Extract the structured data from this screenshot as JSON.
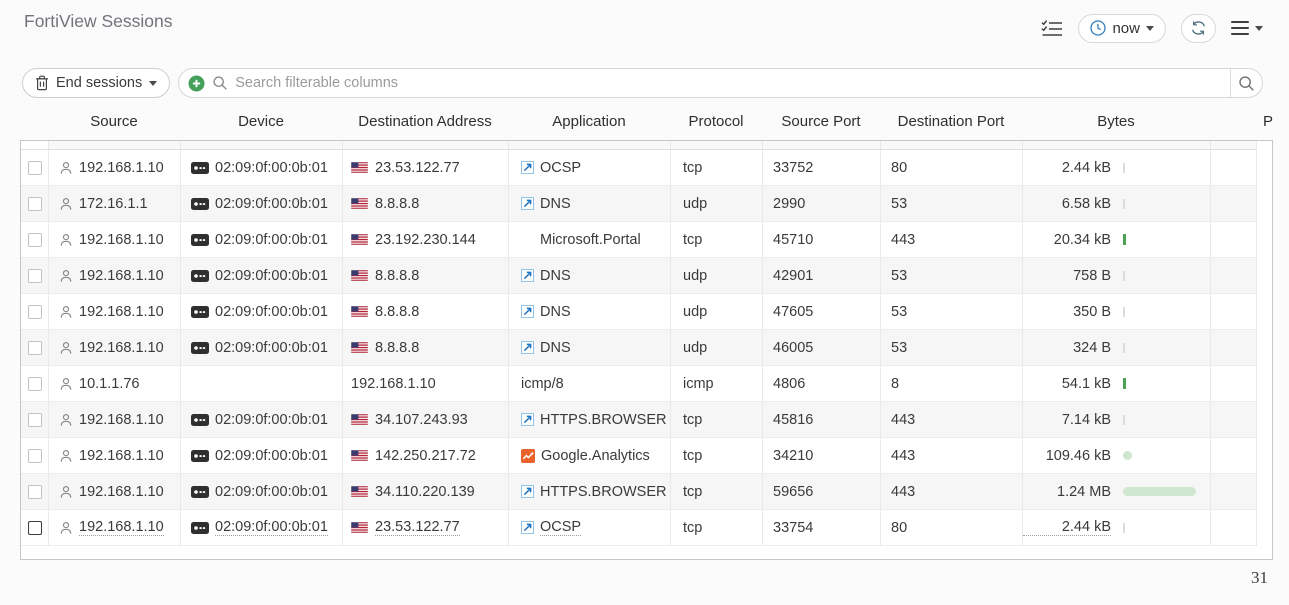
{
  "page": {
    "title": "FortiView Sessions",
    "footer_count": "31"
  },
  "topbar": {
    "time_button_label": "now",
    "icons": [
      "checklist-icon",
      "clock-icon",
      "refresh-icon",
      "hamburger-menu-icon"
    ]
  },
  "toolbar": {
    "end_sessions_label": "End sessions",
    "search_placeholder": "Search filterable columns",
    "icons": [
      "trash-icon",
      "add-filter-plus-icon",
      "search-icon"
    ]
  },
  "colors": {
    "accent_green": "#44a05a",
    "clock_blue": "#2f7fc1",
    "bar_green_light": "#cfe7cf",
    "bar_green_dark": "#4da256",
    "row_alt": "#f6f6f6"
  },
  "table": {
    "columns": [
      "Source",
      "Device",
      "Destination Address",
      "Application",
      "Protocol",
      "Source Port",
      "Destination Port",
      "Bytes"
    ],
    "partial_column_label": "P",
    "rows": [
      {
        "source": "192.168.1.10",
        "device": "02:09:0f:00:0b:01",
        "dest": "23.53.122.77",
        "flag": true,
        "app": "OCSP",
        "appicon": "generic",
        "proto": "tcp",
        "sport": "33752",
        "dport": "80",
        "bytes": "2.44 kB",
        "bar": {
          "type": "tickgray"
        }
      },
      {
        "source": "172.16.1.1",
        "device": "02:09:0f:00:0b:01",
        "dest": "8.8.8.8",
        "flag": true,
        "app": "DNS",
        "appicon": "generic",
        "proto": "udp",
        "sport": "2990",
        "dport": "53",
        "bytes": "6.58 kB",
        "bar": {
          "type": "tickgray"
        }
      },
      {
        "source": "192.168.1.10",
        "device": "02:09:0f:00:0b:01",
        "dest": "23.192.230.144",
        "flag": true,
        "app": "Microsoft.Portal",
        "appicon": "microsoft",
        "proto": "tcp",
        "sport": "45710",
        "dport": "443",
        "bytes": "20.34 kB",
        "bar": {
          "type": "tickgreen"
        }
      },
      {
        "source": "192.168.1.10",
        "device": "02:09:0f:00:0b:01",
        "dest": "8.8.8.8",
        "flag": true,
        "app": "DNS",
        "appicon": "generic",
        "proto": "udp",
        "sport": "42901",
        "dport": "53",
        "bytes": "758 B",
        "bar": {
          "type": "tickgray"
        }
      },
      {
        "source": "192.168.1.10",
        "device": "02:09:0f:00:0b:01",
        "dest": "8.8.8.8",
        "flag": true,
        "app": "DNS",
        "appicon": "generic",
        "proto": "udp",
        "sport": "47605",
        "dport": "53",
        "bytes": "350 B",
        "bar": {
          "type": "tickgray"
        }
      },
      {
        "source": "192.168.1.10",
        "device": "02:09:0f:00:0b:01",
        "dest": "8.8.8.8",
        "flag": true,
        "app": "DNS",
        "appicon": "generic",
        "proto": "udp",
        "sport": "46005",
        "dport": "53",
        "bytes": "324 B",
        "bar": {
          "type": "tickgray"
        }
      },
      {
        "source": "10.1.1.76",
        "device": "",
        "dest": "192.168.1.10",
        "flag": false,
        "app": "icmp/8",
        "appicon": "none",
        "proto": "icmp",
        "sport": "4806",
        "dport": "8",
        "bytes": "54.1 kB",
        "bar": {
          "type": "tickgreen"
        }
      },
      {
        "source": "192.168.1.10",
        "device": "02:09:0f:00:0b:01",
        "dest": "34.107.243.93",
        "flag": true,
        "app": "HTTPS.BROWSER",
        "appicon": "generic",
        "proto": "tcp",
        "sport": "45816",
        "dport": "443",
        "bytes": "7.14 kB",
        "bar": {
          "type": "tickgray"
        }
      },
      {
        "source": "192.168.1.10",
        "device": "02:09:0f:00:0b:01",
        "dest": "142.250.217.72",
        "flag": true,
        "app": "Google.Analytics",
        "appicon": "google",
        "proto": "tcp",
        "sport": "34210",
        "dport": "443",
        "bytes": "109.46 kB",
        "bar": {
          "type": "pill",
          "width": 9
        }
      },
      {
        "source": "192.168.1.10",
        "device": "02:09:0f:00:0b:01",
        "dest": "34.110.220.139",
        "flag": true,
        "app": "HTTPS.BROWSER",
        "appicon": "generic",
        "proto": "tcp",
        "sport": "59656",
        "dport": "443",
        "bytes": "1.24 MB",
        "bar": {
          "type": "pill",
          "width": 73
        }
      },
      {
        "source": "192.168.1.10",
        "device": "02:09:0f:00:0b:01",
        "dest": "23.53.122.77",
        "flag": true,
        "app": "OCSP",
        "appicon": "generic",
        "proto": "tcp",
        "sport": "33754",
        "dport": "80",
        "bytes": "2.44 kB",
        "bar": {
          "type": "tickgray"
        },
        "hover": true
      }
    ]
  }
}
